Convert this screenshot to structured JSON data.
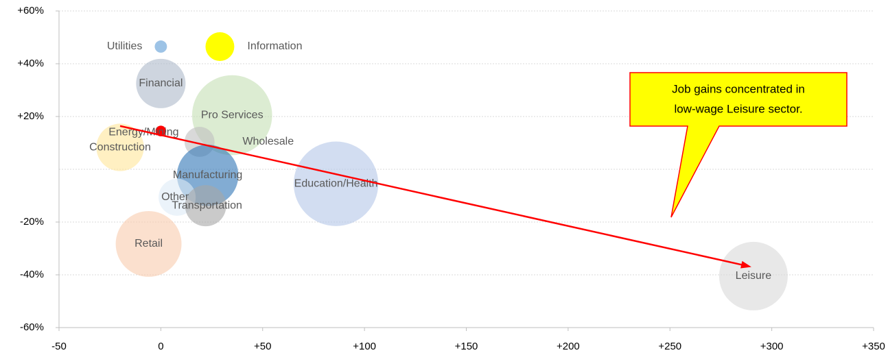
{
  "chart_data": {
    "type": "scatter",
    "names": [
      "Utilities",
      "Information",
      "Financial",
      "Pro Services",
      "Energy/Mining",
      "Construction",
      "Wholesale",
      "Manufacturing",
      "Education/Health",
      "Other",
      "Transportation",
      "Retail",
      "Leisure"
    ],
    "x": [
      0,
      29,
      0,
      35,
      0,
      -20,
      19,
      23,
      86,
      8,
      22,
      -6,
      291
    ],
    "values": [
      46.5,
      46.5,
      32.5,
      20.5,
      14.5,
      8.3,
      10.4,
      -2.3,
      -5.5,
      -10.6,
      -13.8,
      -28.3,
      -40.5
    ],
    "sizes": [
      0.8,
      4.4,
      13,
      34,
      0.6,
      12,
      4.8,
      20,
      38,
      7.3,
      9,
      23,
      25
    ],
    "colors": [
      "#5b9bd5",
      "#ffff00",
      "#adb9ca",
      "#c5e0b4",
      "#ff0000",
      "#ffe699",
      "#bfbfbf",
      "#2e75b6",
      "#b4c7e7",
      "#deebf7",
      "#a6a6a6",
      "#f8cbad",
      "#d9d9d9"
    ],
    "xlim": [
      -50,
      350
    ],
    "xticks": [
      -50,
      0,
      {
        "value": 50,
        "label": "+50"
      },
      {
        "value": 100,
        "label": "+100"
      },
      {
        "value": 150,
        "label": "+150"
      },
      {
        "value": 200,
        "label": "+200"
      },
      {
        "value": 250,
        "label": "+250"
      },
      {
        "value": 300,
        "label": "+300"
      },
      {
        "value": 350,
        "label": "+350"
      }
    ],
    "ylim": [
      -60,
      60
    ],
    "yticks": [
      {
        "value": -60,
        "label": "-60%"
      },
      {
        "value": -40,
        "label": "-40%"
      },
      {
        "value": -20,
        "label": "-20%"
      },
      {
        "value": 20,
        "label": "+20%"
      },
      {
        "value": 40,
        "label": "+40%"
      },
      {
        "value": 60,
        "label": "+60%"
      }
    ],
    "ygrid": [
      -40,
      -20,
      0,
      20,
      40,
      60
    ],
    "arrow": {
      "from": [
        -20,
        16.4
      ],
      "to": [
        290,
        -37
      ]
    },
    "annotation": [
      "Job gains concentrated in",
      "low-wage Leisure sector."
    ]
  }
}
